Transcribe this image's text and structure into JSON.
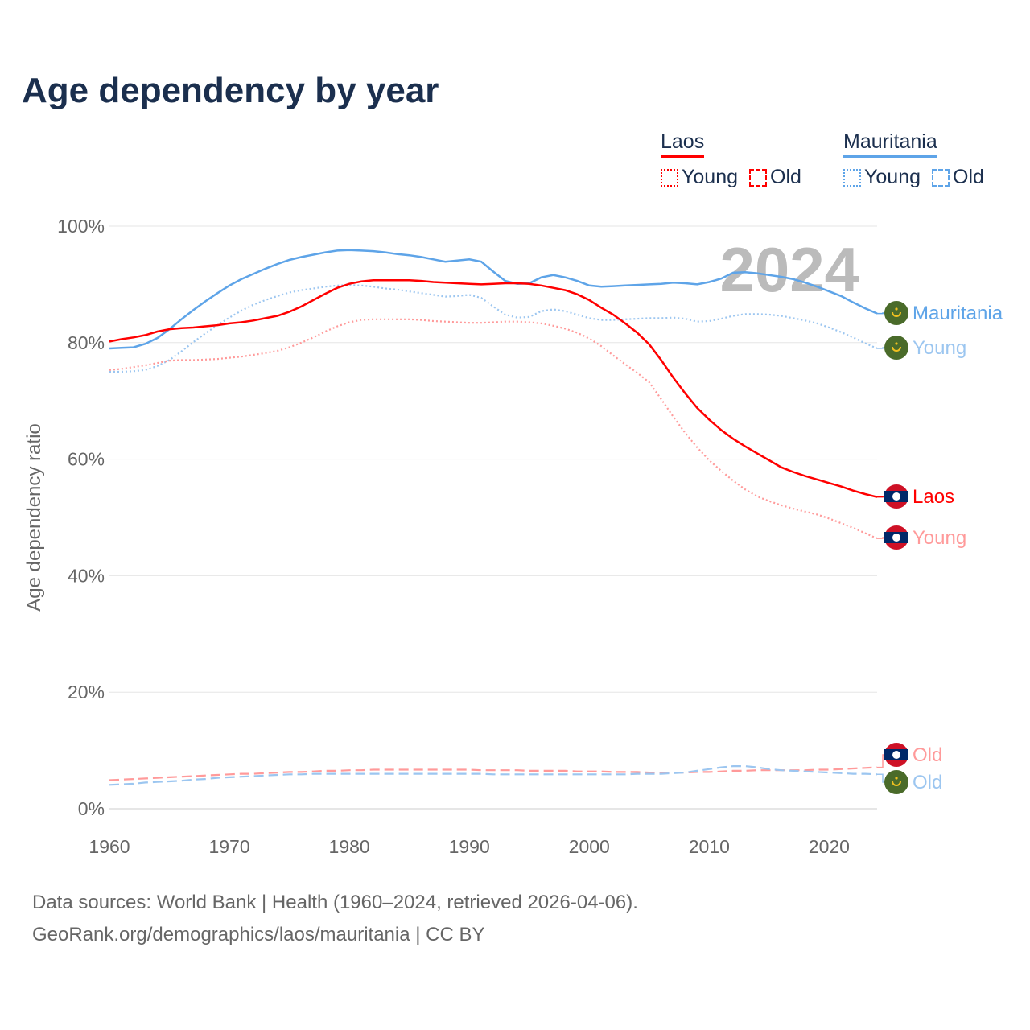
{
  "title": "Age dependency by year",
  "legend": {
    "laos": {
      "name": "Laos",
      "young": "Young",
      "old": "Old",
      "color": "#ff0000"
    },
    "mauritania": {
      "name": "Mauritania",
      "young": "Young",
      "old": "Old",
      "color": "#5ea4e8"
    }
  },
  "year_watermark": "2024",
  "footer": {
    "line1": "Data sources: World Bank | Health (1960–2024, retrieved 2026-04-06).",
    "line2": "GeoRank.org/demographics/laos/mauritania | CC BY"
  },
  "chart_data": {
    "type": "line",
    "title": "Age dependency by year",
    "xlabel": "",
    "ylabel": "Age dependency ratio",
    "xlim": [
      1960,
      2024
    ],
    "ylim": [
      0,
      100
    ],
    "xticks": [
      "1960",
      "1970",
      "1980",
      "1990",
      "2000",
      "2010",
      "2020"
    ],
    "yticks": [
      "0%",
      "20%",
      "40%",
      "60%",
      "80%",
      "100%"
    ],
    "grid": true,
    "legend_position": "top-right",
    "start_year": 1960,
    "series": [
      {
        "name": "Mauritania",
        "end_label": "Mauritania",
        "country": "mauritania",
        "style": "solid",
        "color": "#5ea4e8",
        "values": [
          79.0,
          79.1,
          79.2,
          79.8,
          80.8,
          82.3,
          84.0,
          85.6,
          87.1,
          88.5,
          89.8,
          90.9,
          91.8,
          92.7,
          93.5,
          94.2,
          94.7,
          95.1,
          95.5,
          95.8,
          95.9,
          95.8,
          95.7,
          95.5,
          95.2,
          95.0,
          94.7,
          94.3,
          93.9,
          94.1,
          94.3,
          93.9,
          92.2,
          90.6,
          90.1,
          90.2,
          91.2,
          91.6,
          91.2,
          90.6,
          89.8,
          89.6,
          89.7,
          89.8,
          89.9,
          90.0,
          90.1,
          90.3,
          90.2,
          90.0,
          90.4,
          91.0,
          92.0,
          92.1,
          91.9,
          91.6,
          91.3,
          90.9,
          90.3,
          89.6,
          88.8,
          88.0,
          86.9,
          85.9,
          85.0
        ]
      },
      {
        "name": "Mauritania Young",
        "end_label": "Young",
        "country": "mauritania",
        "style": "dotted",
        "color": "#9cc6f0",
        "values": [
          75.0,
          75.0,
          75.1,
          75.3,
          76.0,
          77.0,
          78.5,
          80.1,
          81.6,
          83.0,
          84.3,
          85.5,
          86.5,
          87.3,
          88.0,
          88.6,
          89.0,
          89.3,
          89.6,
          89.8,
          89.9,
          89.8,
          89.6,
          89.3,
          89.1,
          88.8,
          88.5,
          88.2,
          87.9,
          88.0,
          88.2,
          87.7,
          86.2,
          84.8,
          84.3,
          84.4,
          85.4,
          85.7,
          85.4,
          84.8,
          84.2,
          83.9,
          83.9,
          84.0,
          84.1,
          84.2,
          84.2,
          84.3,
          84.1,
          83.6,
          83.7,
          84.1,
          84.6,
          84.9,
          84.9,
          84.8,
          84.6,
          84.2,
          83.8,
          83.3,
          82.6,
          81.8,
          80.9,
          79.9,
          79.0
        ]
      },
      {
        "name": "Laos",
        "end_label": "Laos",
        "country": "laos",
        "style": "solid",
        "color": "#ff0000",
        "values": [
          80.2,
          80.6,
          80.9,
          81.3,
          81.9,
          82.3,
          82.5,
          82.6,
          82.8,
          83.0,
          83.3,
          83.5,
          83.8,
          84.2,
          84.6,
          85.3,
          86.2,
          87.3,
          88.4,
          89.4,
          90.1,
          90.5,
          90.7,
          90.7,
          90.7,
          90.7,
          90.6,
          90.4,
          90.3,
          90.2,
          90.1,
          90.0,
          90.1,
          90.2,
          90.2,
          90.1,
          89.8,
          89.4,
          89.0,
          88.3,
          87.3,
          86.0,
          84.8,
          83.3,
          81.7,
          79.7,
          77.0,
          74.0,
          71.3,
          68.8,
          66.8,
          65.0,
          63.5,
          62.2,
          61.0,
          59.8,
          58.6,
          57.8,
          57.1,
          56.5,
          55.9,
          55.3,
          54.6,
          54.0,
          53.5
        ]
      },
      {
        "name": "Laos Young",
        "end_label": "Young",
        "country": "laos",
        "style": "dotted",
        "color": "#ff9a9a",
        "values": [
          75.3,
          75.5,
          75.8,
          76.1,
          76.5,
          76.9,
          77.0,
          77.0,
          77.1,
          77.2,
          77.4,
          77.6,
          77.9,
          78.2,
          78.6,
          79.2,
          80.0,
          80.9,
          81.9,
          82.8,
          83.5,
          83.9,
          84.0,
          84.0,
          84.0,
          84.0,
          83.9,
          83.7,
          83.6,
          83.5,
          83.4,
          83.4,
          83.5,
          83.6,
          83.6,
          83.5,
          83.3,
          82.9,
          82.4,
          81.7,
          80.7,
          79.4,
          77.8,
          76.3,
          74.8,
          73.2,
          70.3,
          67.3,
          64.5,
          62.0,
          59.8,
          58.0,
          56.3,
          54.8,
          53.6,
          52.8,
          52.1,
          51.5,
          51.0,
          50.5,
          49.8,
          49.0,
          48.2,
          47.3,
          46.4
        ]
      },
      {
        "name": "Laos Old",
        "end_label": "Old",
        "country": "laos",
        "style": "dashed",
        "color": "#ff9a9a",
        "values": [
          4.9,
          5.0,
          5.1,
          5.2,
          5.3,
          5.4,
          5.5,
          5.6,
          5.7,
          5.8,
          5.9,
          6.0,
          6.0,
          6.1,
          6.2,
          6.3,
          6.3,
          6.4,
          6.5,
          6.5,
          6.6,
          6.6,
          6.7,
          6.7,
          6.7,
          6.7,
          6.7,
          6.7,
          6.7,
          6.7,
          6.7,
          6.6,
          6.6,
          6.6,
          6.6,
          6.5,
          6.5,
          6.5,
          6.5,
          6.4,
          6.4,
          6.4,
          6.3,
          6.3,
          6.3,
          6.2,
          6.2,
          6.2,
          6.2,
          6.3,
          6.3,
          6.4,
          6.5,
          6.5,
          6.6,
          6.6,
          6.6,
          6.6,
          6.6,
          6.7,
          6.7,
          6.8,
          6.9,
          7.0,
          7.1
        ]
      },
      {
        "name": "Mauritania Old",
        "end_label": "Old",
        "country": "mauritania",
        "style": "dashed",
        "color": "#9cc6f0",
        "values": [
          4.1,
          4.2,
          4.3,
          4.5,
          4.6,
          4.7,
          4.8,
          5.0,
          5.1,
          5.3,
          5.4,
          5.5,
          5.6,
          5.7,
          5.8,
          5.9,
          5.9,
          6.0,
          6.0,
          6.0,
          6.0,
          6.0,
          6.0,
          6.0,
          6.0,
          6.0,
          6.0,
          6.0,
          6.0,
          6.0,
          6.0,
          6.0,
          5.9,
          5.9,
          5.9,
          5.9,
          5.9,
          5.9,
          5.9,
          5.9,
          5.9,
          5.9,
          5.9,
          5.9,
          6.0,
          6.0,
          6.0,
          6.1,
          6.2,
          6.5,
          6.8,
          7.1,
          7.3,
          7.3,
          7.1,
          6.8,
          6.6,
          6.5,
          6.4,
          6.3,
          6.2,
          6.1,
          6.0,
          6.0,
          5.9
        ]
      }
    ]
  }
}
